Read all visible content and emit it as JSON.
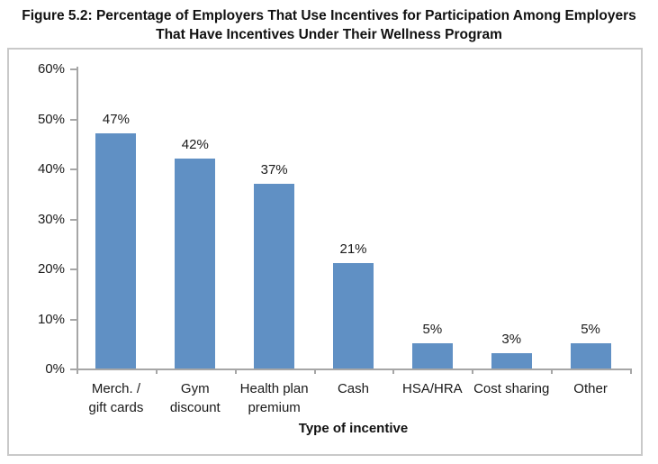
{
  "figure": {
    "title_line1": "Figure 5.2: Percentage of Employers That Use Incentives for Participation Among Employers",
    "title_line2": "That Have Incentives Under Their Wellness Program"
  },
  "chart_data": {
    "type": "bar",
    "categories": [
      "Merch. /\ngift cards",
      "Gym\ndiscount",
      "Health plan\npremium",
      "Cash",
      "HSA/HRA",
      "Cost sharing",
      "Other"
    ],
    "values": [
      47,
      42,
      37,
      21,
      5,
      3,
      5
    ],
    "data_labels": [
      "47%",
      "42%",
      "37%",
      "21%",
      "5%",
      "3%",
      "5%"
    ],
    "title": "Figure 5.2: Percentage of Employers That Use Incentives for Participation Among Employers That Have Incentives Under Their Wellness Program",
    "xlabel": "Type of incentive",
    "ylabel": "",
    "ylim": [
      0,
      60
    ],
    "ytick_step": 10,
    "ytick_labels": [
      "0%",
      "10%",
      "20%",
      "30%",
      "40%",
      "50%",
      "60%"
    ],
    "grid": "off",
    "legend": "none",
    "colors": {
      "bar": "#6090c4",
      "axis": "#a6a6a6",
      "box_border": "#c9c9c9",
      "text": "#1a1a1a"
    }
  }
}
